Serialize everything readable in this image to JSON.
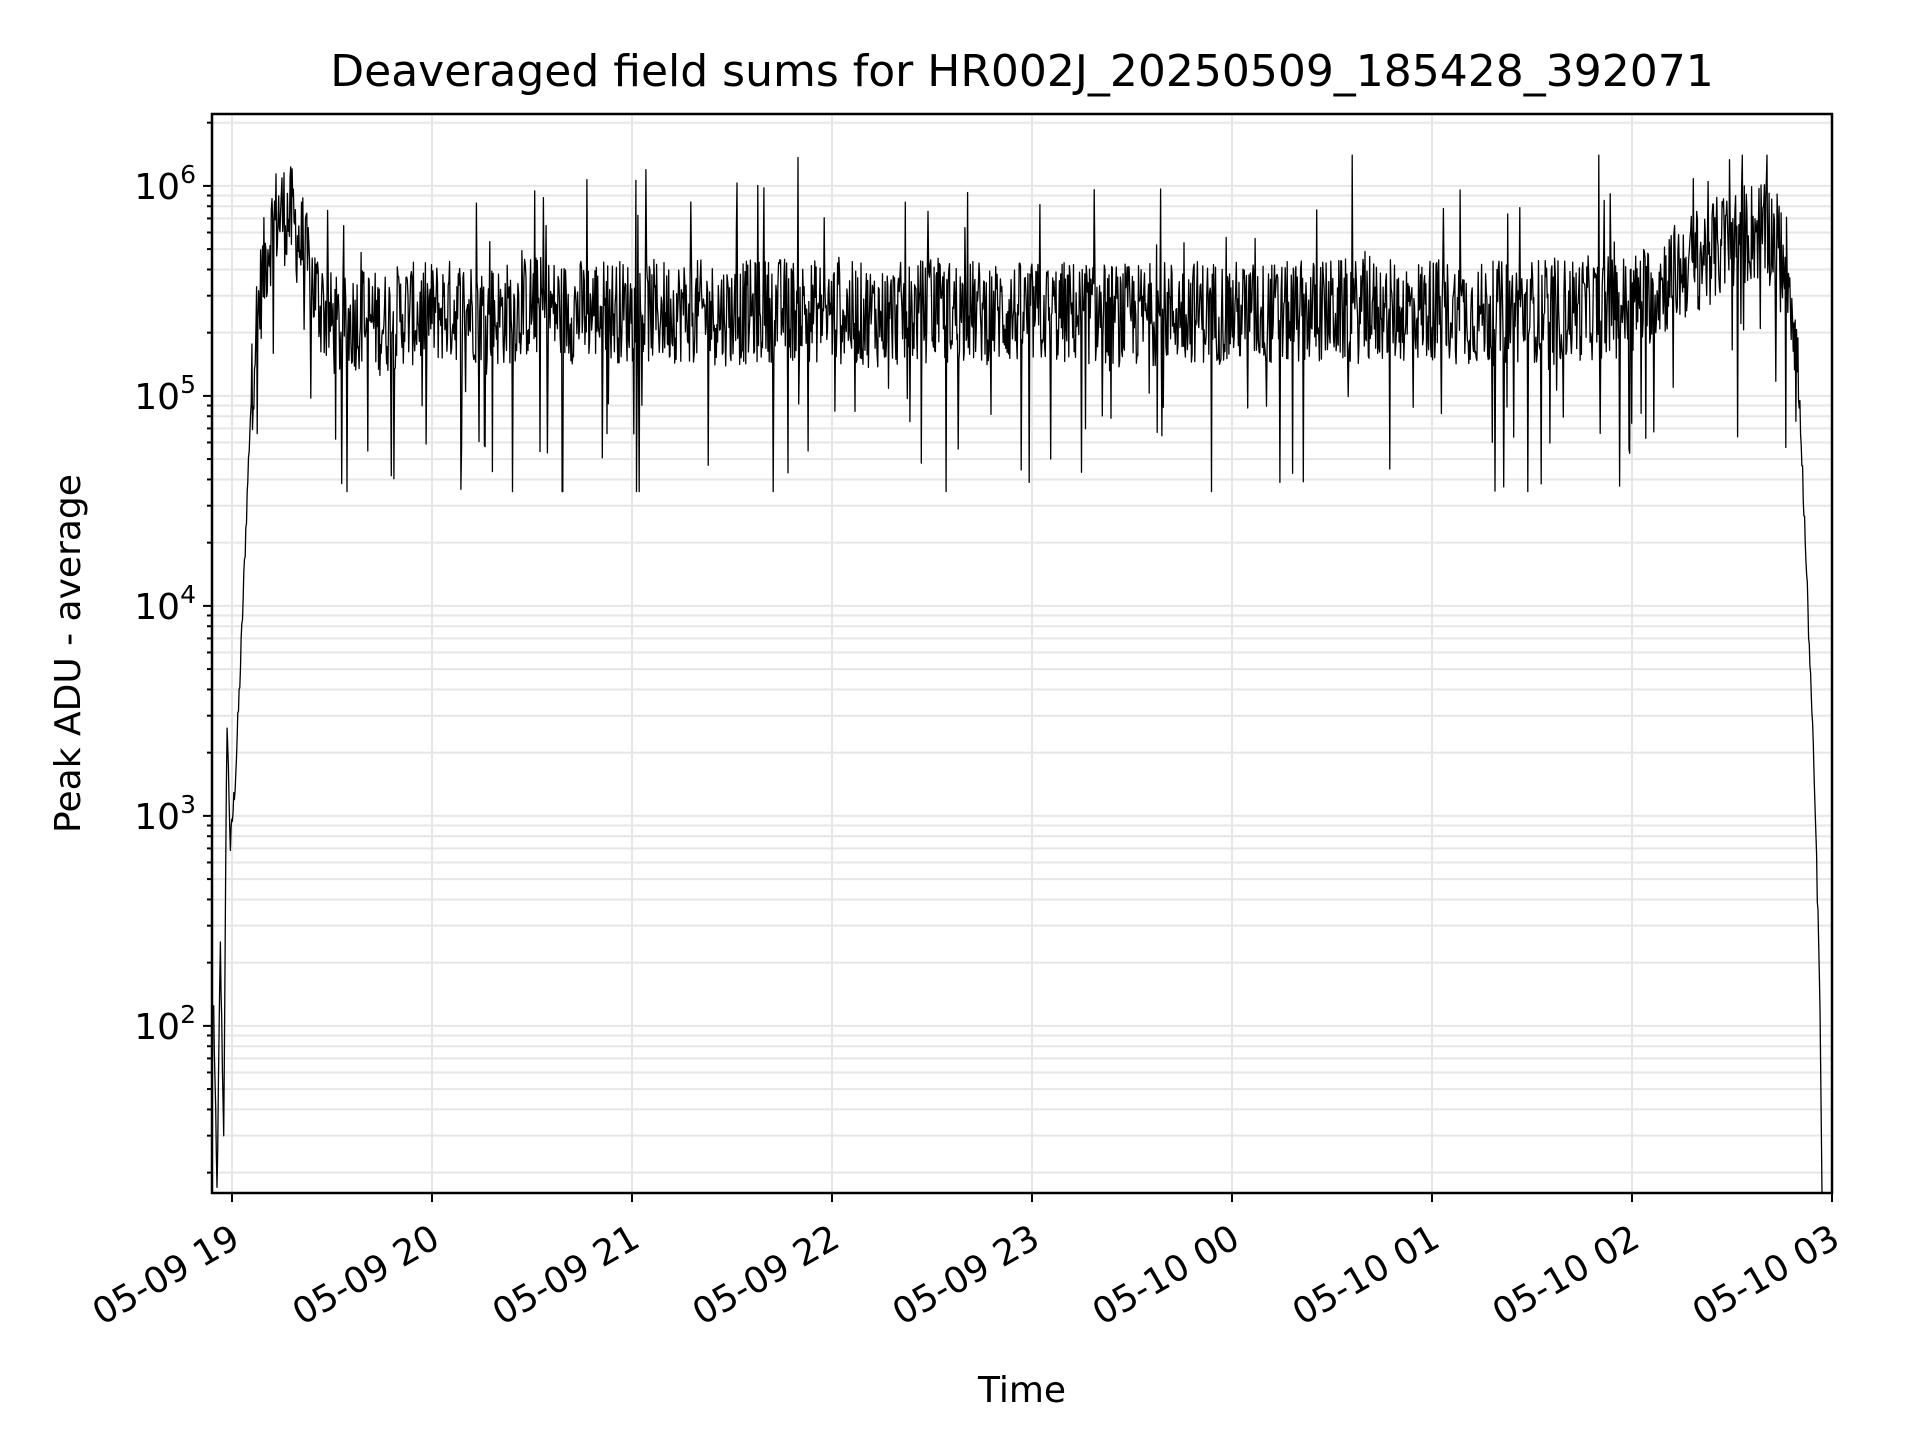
{
  "chart_data": {
    "type": "line",
    "title": "Deaveraged field sums for HR002J_20250509_185428_392071",
    "xlabel": "Time",
    "ylabel": "Peak ADU - average",
    "yscale": "log",
    "xlim": [
      "2025-05-09T18:54:00",
      "2025-05-10T03:00:00"
    ],
    "ylim": [
      16,
      2200000
    ],
    "grid": true,
    "legend": "none",
    "line_color": "#000000",
    "x_ticks": [
      {
        "value": "2025-05-09T19:00:00",
        "label": "05-09 19"
      },
      {
        "value": "2025-05-09T20:00:00",
        "label": "05-09 20"
      },
      {
        "value": "2025-05-09T21:00:00",
        "label": "05-09 21"
      },
      {
        "value": "2025-05-09T22:00:00",
        "label": "05-09 22"
      },
      {
        "value": "2025-05-09T23:00:00",
        "label": "05-09 23"
      },
      {
        "value": "2025-05-10T00:00:00",
        "label": "05-10 00"
      },
      {
        "value": "2025-05-10T01:00:00",
        "label": "05-10 01"
      },
      {
        "value": "2025-05-10T02:00:00",
        "label": "05-10 02"
      },
      {
        "value": "2025-05-10T03:00:00",
        "label": "05-10 03"
      }
    ],
    "y_ticks": [
      {
        "value": 100,
        "base": "10",
        "exp": "2"
      },
      {
        "value": 1000,
        "base": "10",
        "exp": "3"
      },
      {
        "value": 10000,
        "base": "10",
        "exp": "4"
      },
      {
        "value": 100000,
        "base": "10",
        "exp": "5"
      },
      {
        "value": 1000000,
        "base": "10",
        "exp": "6"
      }
    ],
    "series": [
      {
        "x": [
          "2025-05-09T18:54:30",
          "2025-05-09T18:55:30",
          "2025-05-09T18:56:30",
          "2025-05-09T18:57:30",
          "2025-05-09T18:58:30",
          "2025-05-09T18:59:30",
          "2025-05-09T19:01:00",
          "2025-05-09T19:02:30",
          "2025-05-09T19:04:00",
          "2025-05-09T19:05:30",
          "2025-05-09T19:07:00",
          "2025-05-09T19:09:00",
          "2025-05-09T19:11:00",
          "2025-05-09T19:13:00",
          "2025-05-09T19:15:00",
          "2025-05-09T19:18:00",
          "2025-05-09T19:21:00",
          "2025-05-09T19:24:00",
          "2025-05-09T19:27:00",
          "2025-05-09T19:30:00",
          "2025-05-09T19:33:00",
          "2025-05-09T19:36:00",
          "2025-05-09T19:40:00",
          "2025-05-09T19:44:00",
          "2025-05-09T19:48:00",
          "2025-05-09T19:52:00",
          "2025-05-09T19:56:00",
          "2025-05-09T20:00:00",
          "2025-05-09T20:10:00",
          "2025-05-09T20:20:00",
          "2025-05-09T20:30:00",
          "2025-05-09T20:40:00",
          "2025-05-09T20:50:00",
          "2025-05-09T21:00:00",
          "2025-05-09T21:15:00",
          "2025-05-09T21:30:00",
          "2025-05-09T21:45:00",
          "2025-05-09T22:00:00",
          "2025-05-09T22:15:00",
          "2025-05-09T22:30:00",
          "2025-05-09T22:45:00",
          "2025-05-09T23:00:00",
          "2025-05-09T23:15:00",
          "2025-05-09T23:30:00",
          "2025-05-09T23:45:00",
          "2025-05-10T00:00:00",
          "2025-05-10T00:15:00",
          "2025-05-10T00:30:00",
          "2025-05-10T00:45:00",
          "2025-05-10T01:00:00",
          "2025-05-10T01:15:00",
          "2025-05-10T01:30:00",
          "2025-05-10T01:45:00",
          "2025-05-10T02:00:00",
          "2025-05-10T02:10:00",
          "2025-05-10T02:20:00",
          "2025-05-10T02:30:00",
          "2025-05-10T02:35:00",
          "2025-05-10T02:40:00",
          "2025-05-10T02:43:00",
          "2025-05-10T02:46:00",
          "2025-05-10T02:48:00",
          "2025-05-10T02:50:00",
          "2025-05-10T02:52:00",
          "2025-05-10T02:54:00",
          "2025-05-10T02:55:00",
          "2025-05-10T02:56:00",
          "2025-05-10T02:56:30",
          "2025-05-10T02:57:00"
        ],
        "values": [
          120,
          16,
          240,
          30,
          3000,
          700,
          1500,
          5000,
          20000,
          80000,
          200000,
          350000,
          550000,
          700000,
          750000,
          700000,
          500000,
          350000,
          260000,
          220000,
          200000,
          230000,
          240000,
          220000,
          230000,
          250000,
          240000,
          250000,
          260000,
          240000,
          270000,
          250000,
          260000,
          250000,
          255000,
          245000,
          260000,
          250000,
          240000,
          255000,
          250000,
          245000,
          250000,
          240000,
          255000,
          250000,
          245000,
          255000,
          250000,
          260000,
          245000,
          255000,
          260000,
          270000,
          350000,
          450000,
          550000,
          600000,
          620000,
          560000,
          450000,
          300000,
          120000,
          20000,
          3000,
          1000,
          250,
          90,
          16
        ],
        "noise_spread": 0.25,
        "spike_range": [
          35000,
          1400000
        ]
      }
    ]
  }
}
